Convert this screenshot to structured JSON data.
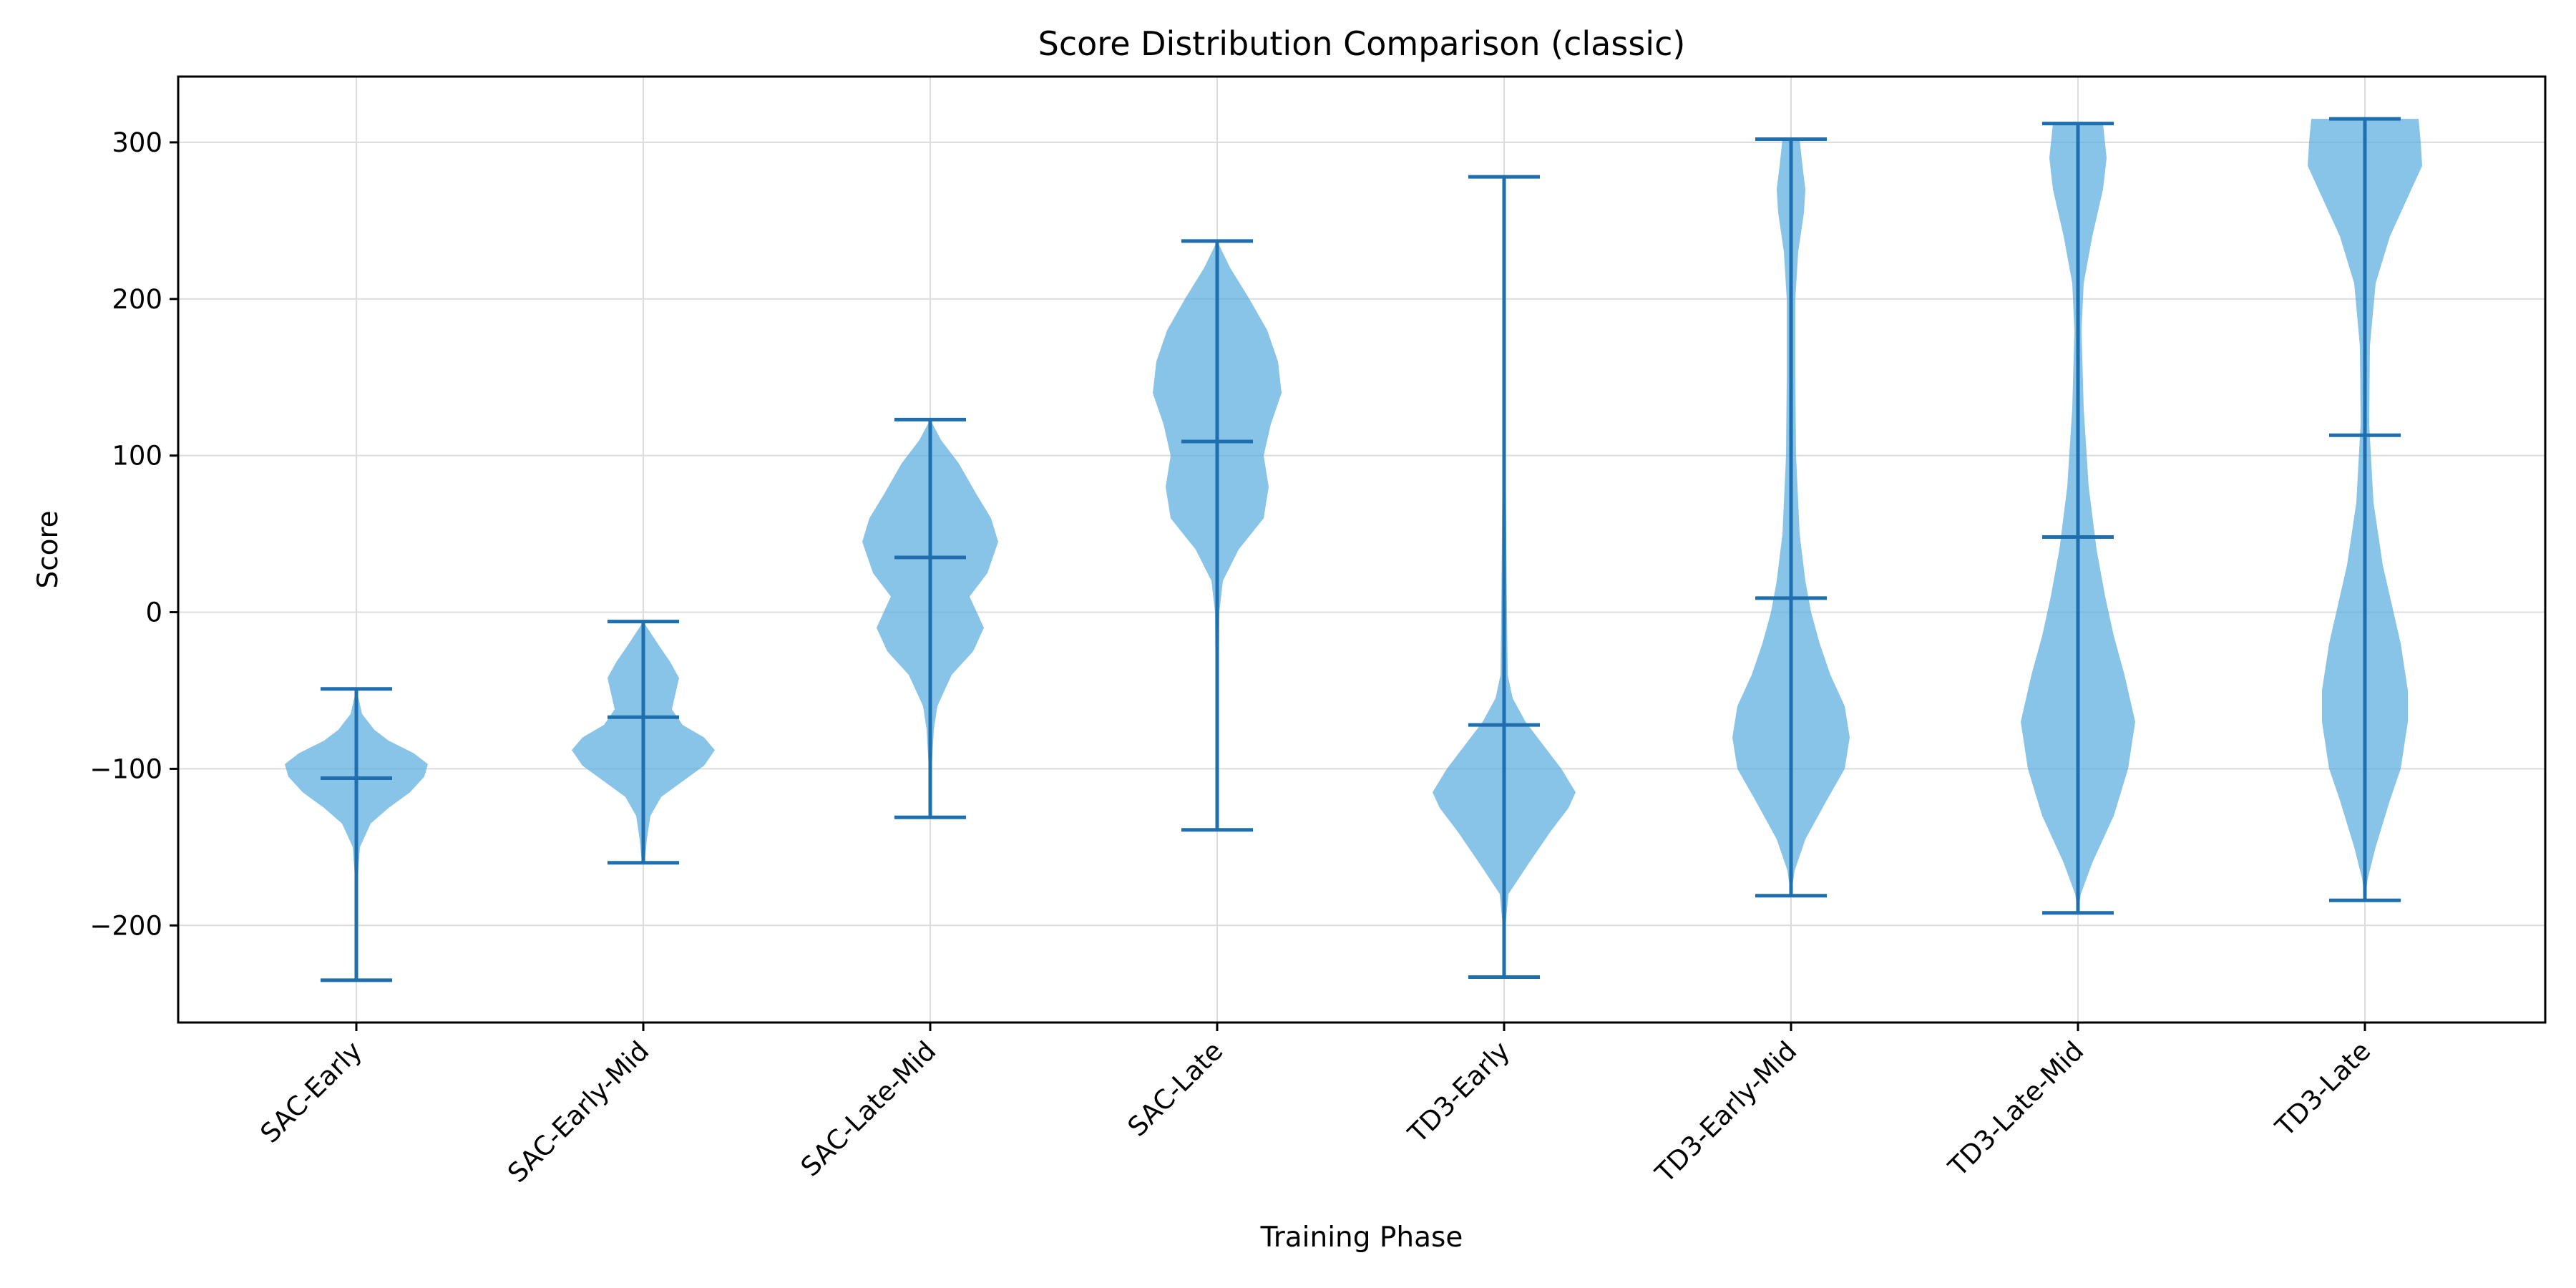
{
  "chart_data": {
    "type": "violin",
    "title": "Score Distribution Comparison (classic)",
    "xlabel": "Training Phase",
    "ylabel": "Score",
    "ylim": [
      -262,
      342
    ],
    "yticks": [
      -200,
      -100,
      0,
      100,
      200,
      300
    ],
    "grid": true,
    "colors": {
      "body": "#5aacdf",
      "lines": "#1f6fae"
    },
    "categories": [
      "SAC-Early",
      "SAC-Early-Mid",
      "SAC-Late-Mid",
      "SAC-Late",
      "TD3-Early",
      "TD3-Early-Mid",
      "TD3-Late-Mid",
      "TD3-Late"
    ],
    "violins": [
      {
        "min": -235,
        "max": -49,
        "median": -106,
        "density": [
          [
            -235,
            0.0
          ],
          [
            -200,
            0.01
          ],
          [
            -170,
            0.02
          ],
          [
            -150,
            0.05
          ],
          [
            -135,
            0.2
          ],
          [
            -125,
            0.45
          ],
          [
            -115,
            0.75
          ],
          [
            -105,
            0.95
          ],
          [
            -97,
            1.0
          ],
          [
            -90,
            0.8
          ],
          [
            -82,
            0.45
          ],
          [
            -75,
            0.25
          ],
          [
            -65,
            0.08
          ],
          [
            -49,
            0.0
          ]
        ]
      },
      {
        "min": -160,
        "max": -6,
        "median": -67,
        "density": [
          [
            -160,
            0.02
          ],
          [
            -145,
            0.05
          ],
          [
            -130,
            0.1
          ],
          [
            -118,
            0.25
          ],
          [
            -108,
            0.55
          ],
          [
            -98,
            0.85
          ],
          [
            -88,
            1.0
          ],
          [
            -80,
            0.85
          ],
          [
            -72,
            0.55
          ],
          [
            -62,
            0.4
          ],
          [
            -52,
            0.45
          ],
          [
            -42,
            0.5
          ],
          [
            -32,
            0.38
          ],
          [
            -20,
            0.2
          ],
          [
            -6,
            0.0
          ]
        ]
      },
      {
        "min": -131,
        "max": 123,
        "median": 35,
        "density": [
          [
            -131,
            0.0
          ],
          [
            -100,
            0.02
          ],
          [
            -75,
            0.05
          ],
          [
            -60,
            0.1
          ],
          [
            -40,
            0.3
          ],
          [
            -25,
            0.6
          ],
          [
            -10,
            0.75
          ],
          [
            0,
            0.65
          ],
          [
            10,
            0.55
          ],
          [
            25,
            0.8
          ],
          [
            45,
            0.95
          ],
          [
            60,
            0.85
          ],
          [
            75,
            0.65
          ],
          [
            95,
            0.4
          ],
          [
            110,
            0.15
          ],
          [
            123,
            0.0
          ]
        ]
      },
      {
        "min": -139,
        "max": 237,
        "median": 109,
        "density": [
          [
            -139,
            0.0
          ],
          [
            -100,
            0.02
          ],
          [
            -50,
            0.02
          ],
          [
            0,
            0.03
          ],
          [
            20,
            0.08
          ],
          [
            40,
            0.3
          ],
          [
            60,
            0.65
          ],
          [
            80,
            0.72
          ],
          [
            100,
            0.65
          ],
          [
            120,
            0.75
          ],
          [
            140,
            0.9
          ],
          [
            160,
            0.85
          ],
          [
            180,
            0.7
          ],
          [
            200,
            0.45
          ],
          [
            220,
            0.18
          ],
          [
            237,
            0.0
          ]
        ]
      },
      {
        "min": -233,
        "max": 278,
        "median": -72,
        "density": [
          [
            -233,
            0.0
          ],
          [
            -200,
            0.02
          ],
          [
            -180,
            0.06
          ],
          [
            -160,
            0.35
          ],
          [
            -140,
            0.65
          ],
          [
            -125,
            0.9
          ],
          [
            -115,
            1.0
          ],
          [
            -100,
            0.8
          ],
          [
            -85,
            0.55
          ],
          [
            -70,
            0.3
          ],
          [
            -55,
            0.12
          ],
          [
            -40,
            0.05
          ],
          [
            0,
            0.04
          ],
          [
            50,
            0.03
          ],
          [
            150,
            0.01
          ],
          [
            278,
            0.0
          ]
        ]
      },
      {
        "min": -181,
        "max": 302,
        "median": 9,
        "density": [
          [
            -181,
            0.0
          ],
          [
            -165,
            0.05
          ],
          [
            -145,
            0.2
          ],
          [
            -120,
            0.5
          ],
          [
            -100,
            0.75
          ],
          [
            -80,
            0.82
          ],
          [
            -60,
            0.75
          ],
          [
            -40,
            0.55
          ],
          [
            -20,
            0.4
          ],
          [
            0,
            0.28
          ],
          [
            20,
            0.2
          ],
          [
            50,
            0.12
          ],
          [
            100,
            0.07
          ],
          [
            150,
            0.06
          ],
          [
            200,
            0.06
          ],
          [
            230,
            0.1
          ],
          [
            255,
            0.18
          ],
          [
            270,
            0.2
          ],
          [
            285,
            0.16
          ],
          [
            302,
            0.12
          ]
        ]
      },
      {
        "min": -192,
        "max": 312,
        "median": 48,
        "density": [
          [
            -192,
            0.0
          ],
          [
            -180,
            0.04
          ],
          [
            -160,
            0.2
          ],
          [
            -130,
            0.5
          ],
          [
            -100,
            0.7
          ],
          [
            -70,
            0.8
          ],
          [
            -40,
            0.65
          ],
          [
            -15,
            0.5
          ],
          [
            10,
            0.38
          ],
          [
            40,
            0.26
          ],
          [
            80,
            0.15
          ],
          [
            130,
            0.08
          ],
          [
            180,
            0.05
          ],
          [
            210,
            0.08
          ],
          [
            240,
            0.2
          ],
          [
            270,
            0.35
          ],
          [
            290,
            0.4
          ],
          [
            312,
            0.35
          ]
        ]
      },
      {
        "min": -184,
        "max": 315,
        "median": 113,
        "density": [
          [
            -184,
            0.0
          ],
          [
            -170,
            0.04
          ],
          [
            -150,
            0.15
          ],
          [
            -120,
            0.35
          ],
          [
            -100,
            0.5
          ],
          [
            -70,
            0.6
          ],
          [
            -50,
            0.6
          ],
          [
            -20,
            0.5
          ],
          [
            0,
            0.4
          ],
          [
            30,
            0.25
          ],
          [
            70,
            0.12
          ],
          [
            120,
            0.06
          ],
          [
            170,
            0.07
          ],
          [
            210,
            0.15
          ],
          [
            240,
            0.35
          ],
          [
            265,
            0.6
          ],
          [
            285,
            0.8
          ],
          [
            300,
            0.78
          ],
          [
            315,
            0.75
          ]
        ]
      }
    ]
  }
}
